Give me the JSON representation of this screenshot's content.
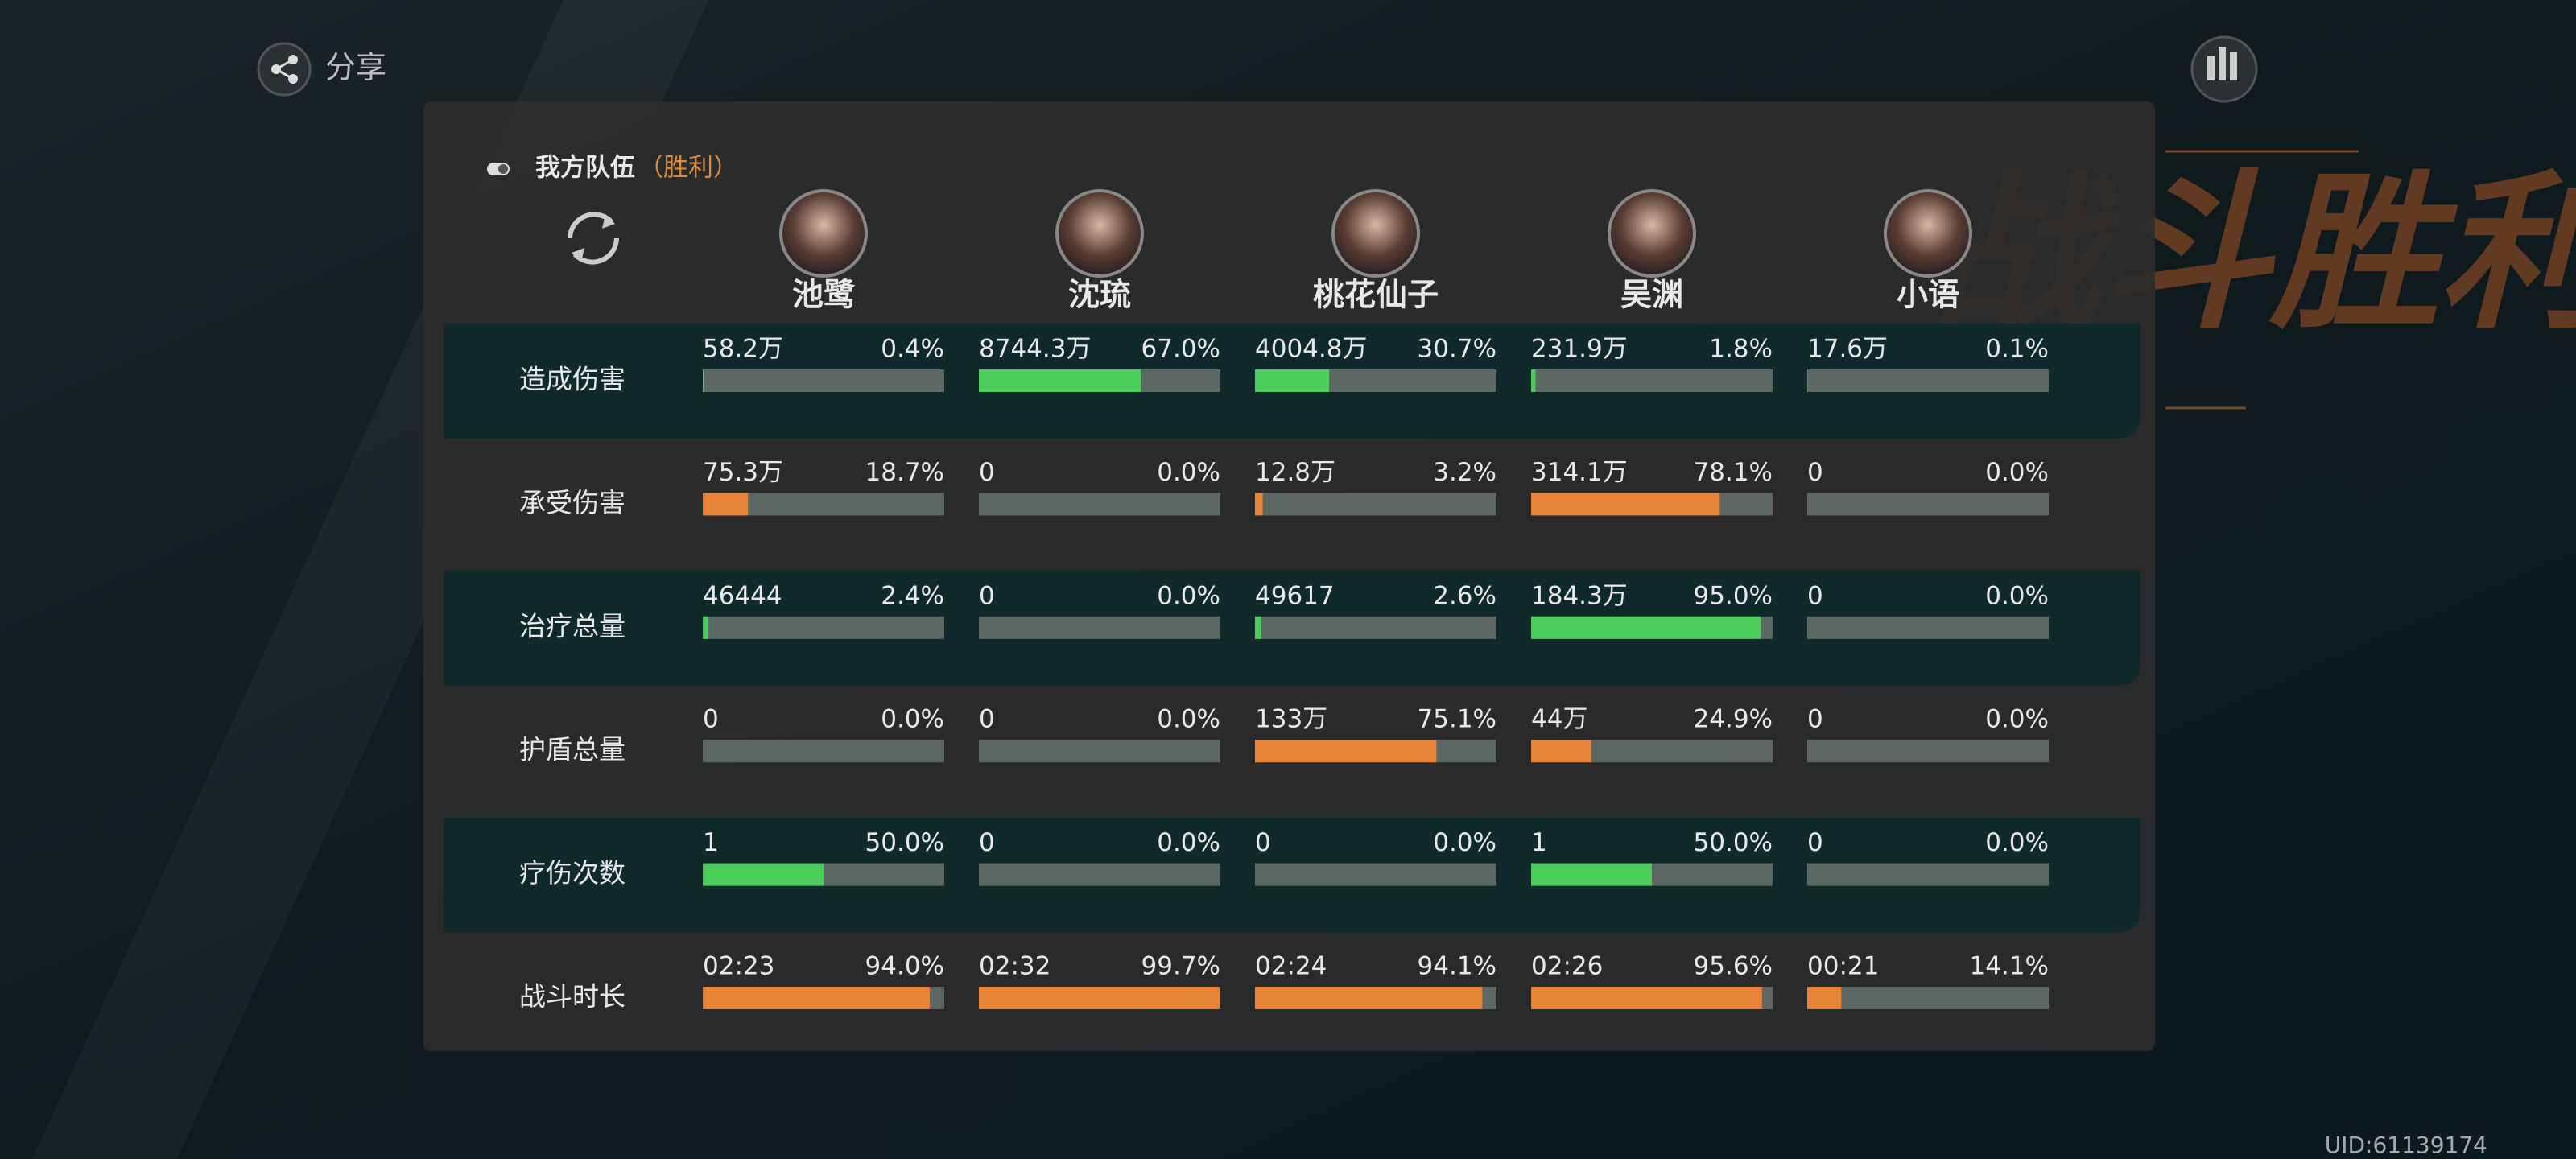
{
  "share_label": "分享",
  "banner": "战斗胜利",
  "team": {
    "title": "我方队伍",
    "result": "（胜利）"
  },
  "characters": [
    "池鹭",
    "沈琉",
    "桃花仙子",
    "吴渊",
    "小语"
  ],
  "rows": [
    {
      "label": "造成伤害",
      "color": "#4ccc5a",
      "cells": [
        {
          "value": "58.2万",
          "share": 0.4,
          "share_label": "0.4%"
        },
        {
          "value": "8744.3万",
          "share": 67.0,
          "share_label": "67.0%"
        },
        {
          "value": "4004.8万",
          "share": 30.7,
          "share_label": "30.7%"
        },
        {
          "value": "231.9万",
          "share": 1.8,
          "share_label": "1.8%"
        },
        {
          "value": "17.6万",
          "share": 0.1,
          "share_label": "0.1%"
        }
      ]
    },
    {
      "label": "承受伤害",
      "color": "#e8843a",
      "cells": [
        {
          "value": "75.3万",
          "share": 18.7,
          "share_label": "18.7%"
        },
        {
          "value": "0",
          "share": 0,
          "share_label": "0.0%"
        },
        {
          "value": "12.8万",
          "share": 3.2,
          "share_label": "3.2%"
        },
        {
          "value": "314.1万",
          "share": 78.1,
          "share_label": "78.1%"
        },
        {
          "value": "0",
          "share": 0,
          "share_label": "0.0%"
        }
      ]
    },
    {
      "label": "治疗总量",
      "color": "#4ccc5a",
      "cells": [
        {
          "value": "46444",
          "share": 2.4,
          "share_label": "2.4%"
        },
        {
          "value": "0",
          "share": 0,
          "share_label": "0.0%"
        },
        {
          "value": "49617",
          "share": 2.6,
          "share_label": "2.6%"
        },
        {
          "value": "184.3万",
          "share": 95.0,
          "share_label": "95.0%"
        },
        {
          "value": "0",
          "share": 0,
          "share_label": "0.0%"
        }
      ]
    },
    {
      "label": "护盾总量",
      "color": "#e8843a",
      "cells": [
        {
          "value": "0",
          "share": 0,
          "share_label": "0.0%"
        },
        {
          "value": "0",
          "share": 0,
          "share_label": "0.0%"
        },
        {
          "value": "133万",
          "share": 75.1,
          "share_label": "75.1%"
        },
        {
          "value": "44万",
          "share": 24.9,
          "share_label": "24.9%"
        },
        {
          "value": "0",
          "share": 0,
          "share_label": "0.0%"
        }
      ]
    },
    {
      "label": "疗伤次数",
      "color": "#4ccc5a",
      "cells": [
        {
          "value": "1",
          "share": 50.0,
          "share_label": "50.0%"
        },
        {
          "value": "0",
          "share": 0,
          "share_label": "0.0%"
        },
        {
          "value": "0",
          "share": 0,
          "share_label": "0.0%"
        },
        {
          "value": "1",
          "share": 50.0,
          "share_label": "50.0%"
        },
        {
          "value": "0",
          "share": 0,
          "share_label": "0.0%"
        }
      ]
    },
    {
      "label": "战斗时长",
      "color": "#e8843a",
      "cells": [
        {
          "value": "02:23",
          "share": 94.0,
          "share_label": "94.0%"
        },
        {
          "value": "02:32",
          "share": 99.7,
          "share_label": "99.7%"
        },
        {
          "value": "02:24",
          "share": 94.1,
          "share_label": "94.1%"
        },
        {
          "value": "02:26",
          "share": 95.6,
          "share_label": "95.6%"
        },
        {
          "value": "00:21",
          "share": 14.1,
          "share_label": "14.1%"
        }
      ]
    }
  ],
  "uid": "UID:61139174"
}
